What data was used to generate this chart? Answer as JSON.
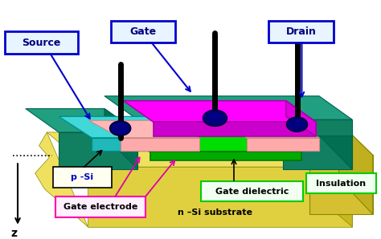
{
  "bg_color": "#ffffff",
  "labels": {
    "source": "Source",
    "gate": "Gate",
    "drain": "Drain",
    "p_si": "p -Si",
    "gate_electrode": "Gate electrode",
    "gate_dielectric": "Gate dielectric",
    "n_si": "n –Si substrate",
    "insulation": "Insulation",
    "z_label": "z"
  },
  "colors": {
    "substrate_top": "#f0e060",
    "substrate_front": "#e0d040",
    "substrate_right": "#c8b820",
    "insulation_top": "#e8d840",
    "insulation_front": "#d4c030",
    "insulation_right": "#c0b020",
    "teal_top": "#20a080",
    "teal_front": "#108060",
    "teal_right": "#007050",
    "teal_edge": "#006050",
    "cyan_top": "#40d8d8",
    "cyan_front": "#20b8b8",
    "cyan_edge": "#009090",
    "green_top": "#00dd00",
    "green_front": "#00aa00",
    "green_edge": "#007700",
    "pink_top": "#ffb8b8",
    "pink_front": "#ffaaaa",
    "pink_edge": "#cc8888",
    "magenta_top": "#ff00ff",
    "magenta_front": "#cc00cc",
    "magenta_right": "#dd00dd",
    "magenta_edge": "#aa00aa",
    "contact_fill": "#000080",
    "contact_edge": "#000040",
    "terminal": "#000000",
    "box_blue_fill": "#e8f4ff",
    "box_blue_edge": "#0000cc",
    "box_green_fill": "#f0fff0",
    "box_green_edge": "#00cc00",
    "box_pink_fill": "#fff0ff",
    "box_pink_edge": "#ff00aa",
    "box_yellow_fill": "#fffff0",
    "box_yellow_edge": "#000000",
    "label_blue": "#000080",
    "label_dark": "#000000",
    "label_psi": "#0000cc",
    "arrow_blue": "#0000cc",
    "arrow_black": "#000000",
    "arrow_pink": "#dd00aa"
  }
}
